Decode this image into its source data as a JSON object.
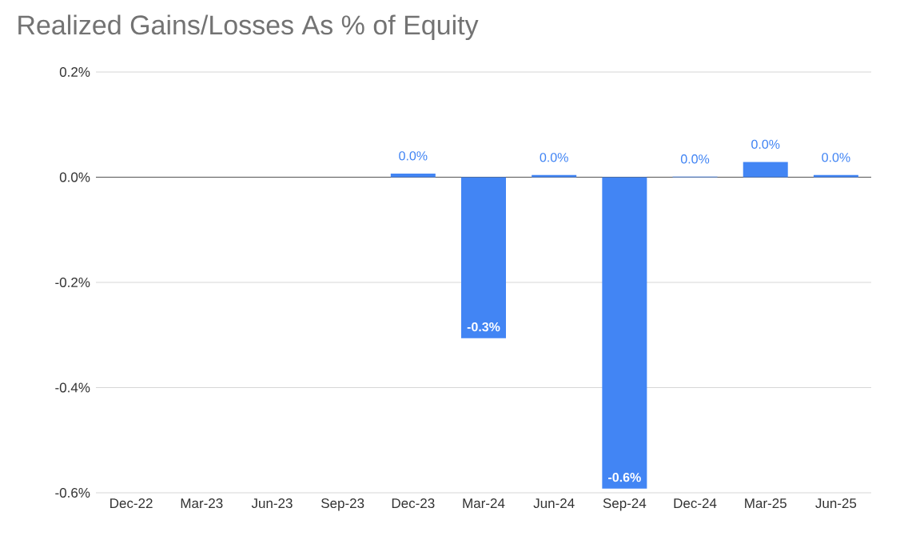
{
  "chart_data": {
    "type": "bar",
    "title": "Realized Gains/Losses As % of Equity",
    "categories": [
      "Dec-22",
      "Mar-23",
      "Jun-23",
      "Sep-23",
      "Dec-23",
      "Mar-24",
      "Jun-24",
      "Sep-24",
      "Dec-24",
      "Mar-25",
      "Jun-25"
    ],
    "values": [
      null,
      null,
      null,
      null,
      0.007,
      -0.306,
      0.004,
      -0.592,
      0.001,
      0.029,
      0.004
    ],
    "value_labels": [
      null,
      null,
      null,
      null,
      "0.0%",
      "-0.3%",
      "0.0%",
      "-0.6%",
      "0.0%",
      "0.0%",
      "0.0%"
    ],
    "color": "#4285f4",
    "ylim": [
      -0.6,
      0.2
    ],
    "yticks": [
      {
        "value": -0.6,
        "label": "-0.6%"
      },
      {
        "value": -0.4,
        "label": "-0.4%"
      },
      {
        "value": -0.2,
        "label": "-0.2%"
      },
      {
        "value": 0,
        "label": "0.0%"
      },
      {
        "value": 0.2,
        "label": "0.2%"
      }
    ],
    "grid": "y"
  }
}
